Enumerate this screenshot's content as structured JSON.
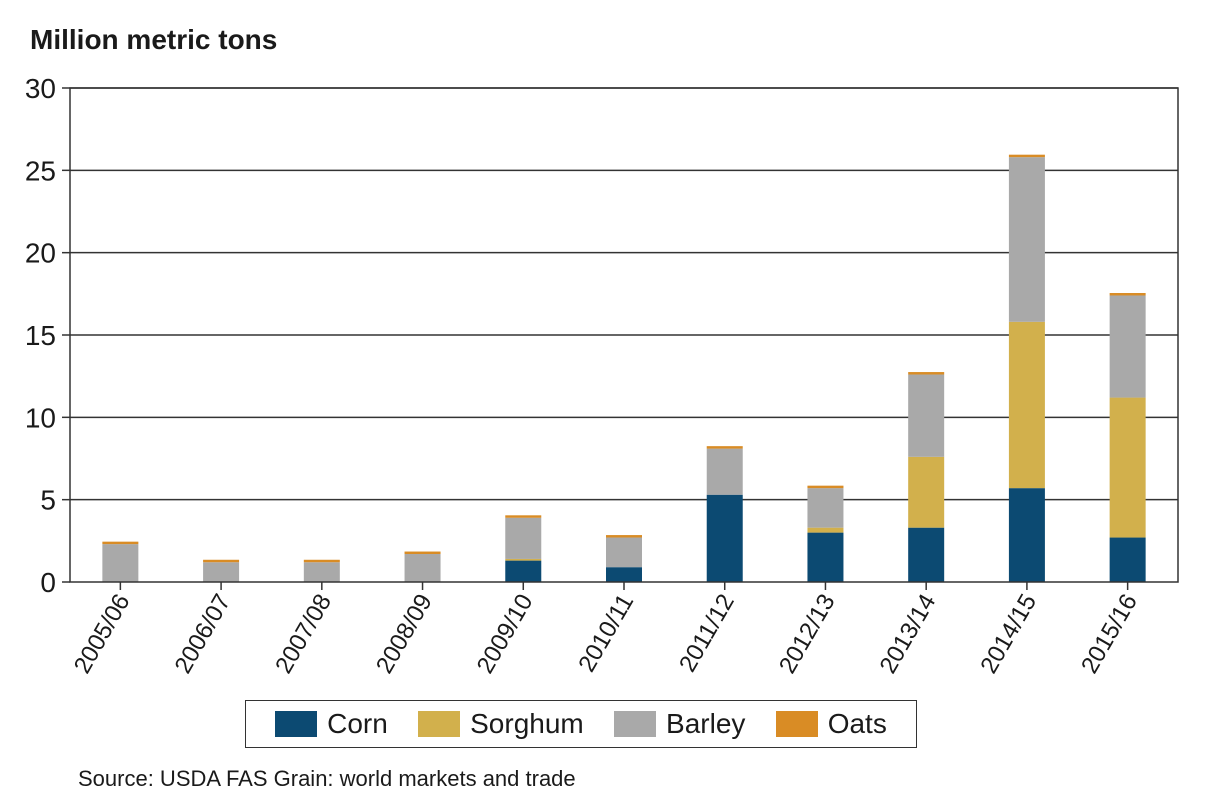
{
  "chart_data": {
    "type": "bar",
    "stacked": true,
    "ylabel": "Million metric tons",
    "source": "Source: USDA FAS Grain: world markets and trade",
    "ylim": [
      0,
      30
    ],
    "yticks": [
      0,
      5,
      10,
      15,
      20,
      25,
      30
    ],
    "grid": true,
    "legend_position": "bottom",
    "categories": [
      "2005/06",
      "2006/07",
      "2007/08",
      "2008/09",
      "2009/10",
      "2010/11",
      "2011/12",
      "2012/13",
      "2013/14",
      "2014/15",
      "2015/16"
    ],
    "series": [
      {
        "name": "Corn",
        "color": "#0c4a72",
        "values": [
          0,
          0,
          0,
          0,
          1.3,
          0.9,
          5.3,
          3.0,
          3.3,
          5.7,
          2.7
        ]
      },
      {
        "name": "Sorghum",
        "color": "#d2b04c",
        "values": [
          0,
          0,
          0,
          0,
          0.1,
          0,
          0,
          0.3,
          4.3,
          10.1,
          8.5
        ]
      },
      {
        "name": "Barley",
        "color": "#a9a9a9",
        "values": [
          2.3,
          1.2,
          1.2,
          1.7,
          2.5,
          1.8,
          2.8,
          2.4,
          5.0,
          10.0,
          6.2
        ]
      },
      {
        "name": "Oats",
        "color": "#d98c25",
        "values": [
          0.15,
          0.15,
          0.15,
          0.15,
          0.15,
          0.15,
          0.15,
          0.15,
          0.15,
          0.15,
          0.15
        ]
      }
    ]
  }
}
